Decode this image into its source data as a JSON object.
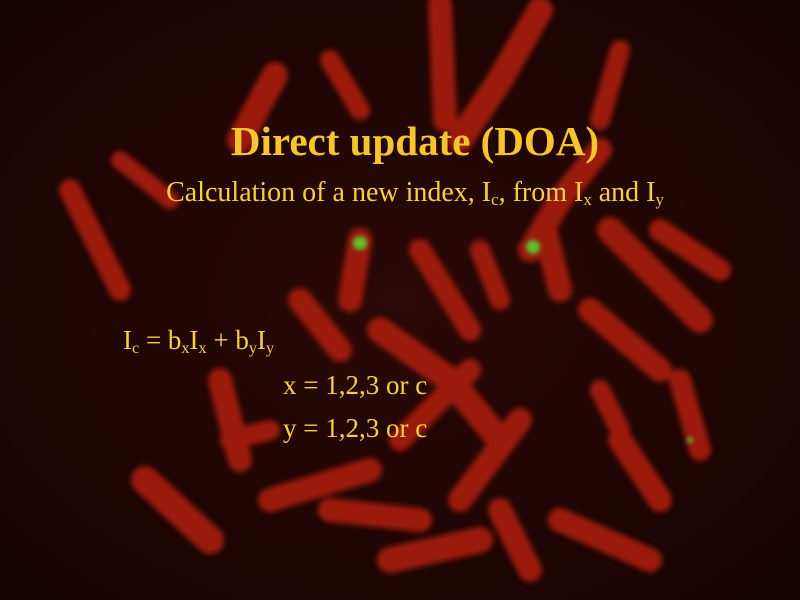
{
  "colors": {
    "background": "#1c0604",
    "chromosome_red": "#a51d10",
    "signal_green": "#5fc02c",
    "text_yellow": "#f6cf45"
  },
  "slide": {
    "title": "Direct update (DOA)",
    "subtitle": {
      "prefix": "Calculation of a new index, I",
      "sub1": "c",
      "mid1": ", from I",
      "sub2": "x",
      "mid2": " and I",
      "sub3": "y"
    },
    "equation": {
      "lhs": "I",
      "lhs_sub": "c",
      "eq": " = b",
      "b1_sub": "x",
      "i1": "I",
      "i1_sub": "x",
      "plus": " + b",
      "b2_sub": "y",
      "i2": "I",
      "i2_sub": "y"
    },
    "conditions": [
      "x = 1,2,3 or c",
      "y = 1,2,3 or c"
    ]
  }
}
